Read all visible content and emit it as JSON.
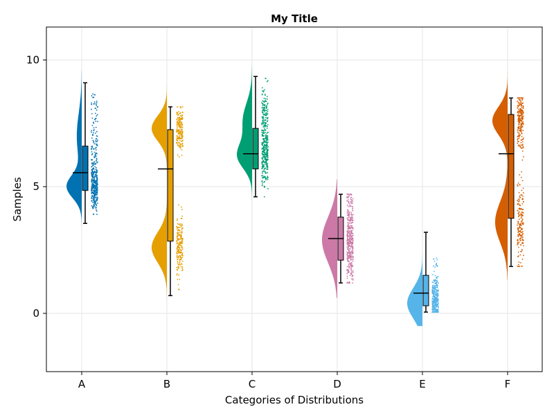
{
  "chart_data": {
    "type": "raincloud",
    "title": "My Title",
    "xlabel": "Categories of Distributions",
    "ylabel": "Samples",
    "categories": [
      "A",
      "B",
      "C",
      "D",
      "E",
      "F"
    ],
    "ylim": [
      -2.3,
      11.3
    ],
    "yticks": [
      0,
      5,
      10
    ],
    "grid": true,
    "colors": [
      "#0072B2",
      "#E69F00",
      "#009E73",
      "#CC79A7",
      "#56B4E9",
      "#D55E00"
    ],
    "series": [
      {
        "category": "A",
        "median": 5.55,
        "q1": 4.85,
        "q3": 6.6,
        "whisker_low": 3.55,
        "whisker_high": 9.1,
        "density": [
          {
            "mode": 5.0,
            "sd": 0.45,
            "weight": 0.75
          },
          {
            "mode": 7.0,
            "sd": 0.9,
            "weight": 0.25
          }
        ],
        "range": [
          3.1,
          9.6
        ]
      },
      {
        "category": "B",
        "median": 5.7,
        "q1": 2.85,
        "q3": 7.25,
        "whisker_low": 0.7,
        "whisker_high": 8.15,
        "density": [
          {
            "mode": 7.3,
            "sd": 0.5,
            "weight": 0.5
          },
          {
            "mode": 2.6,
            "sd": 0.6,
            "weight": 0.5
          }
        ],
        "range": [
          0.2,
          9.4
        ]
      },
      {
        "category": "C",
        "median": 6.3,
        "q1": 5.7,
        "q3": 7.3,
        "whisker_low": 4.6,
        "whisker_high": 9.35,
        "density": [
          {
            "mode": 6.2,
            "sd": 0.5,
            "weight": 0.6
          },
          {
            "mode": 7.6,
            "sd": 0.7,
            "weight": 0.4
          }
        ],
        "range": [
          4.2,
          9.8
        ]
      },
      {
        "category": "D",
        "median": 2.95,
        "q1": 2.1,
        "q3": 3.8,
        "whisker_low": 1.2,
        "whisker_high": 4.7,
        "density": [
          {
            "mode": 2.9,
            "sd": 0.9,
            "weight": 1.0
          }
        ],
        "range": [
          0.6,
          5.3
        ]
      },
      {
        "category": "E",
        "median": 0.8,
        "q1": 0.3,
        "q3": 1.5,
        "whisker_low": 0.05,
        "whisker_high": 3.2,
        "density": [
          {
            "mode": 0.4,
            "sd": 0.6,
            "weight": 1.0
          }
        ],
        "range": [
          -0.5,
          7.5
        ]
      },
      {
        "category": "F",
        "median": 6.3,
        "q1": 3.75,
        "q3": 7.85,
        "whisker_low": 1.85,
        "whisker_high": 8.5,
        "density": [
          {
            "mode": 7.6,
            "sd": 0.55,
            "weight": 0.55
          },
          {
            "mode": 3.6,
            "sd": 0.8,
            "weight": 0.45
          }
        ],
        "range": [
          1.3,
          9.7
        ]
      }
    ]
  }
}
